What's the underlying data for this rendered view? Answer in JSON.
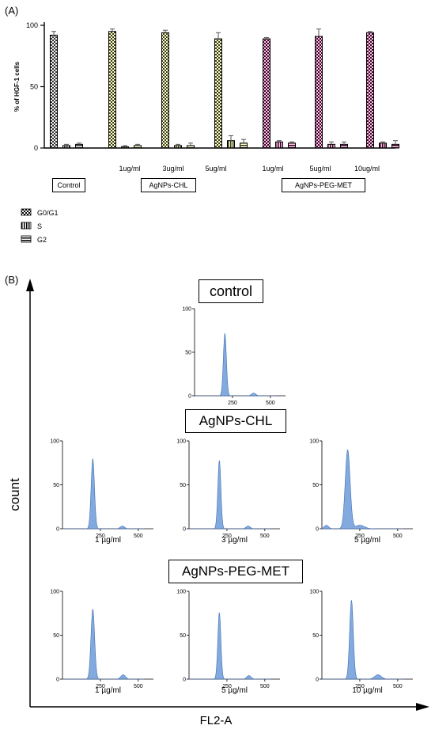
{
  "panel_a_label": "(A)",
  "panel_b_label": "(B)",
  "chart_data": [
    {
      "type": "bar",
      "ylabel": "% of HGF-1 cells",
      "ylim": [
        0,
        100
      ],
      "yticks": [
        0,
        50,
        100
      ],
      "groups": [
        {
          "label": "Control",
          "categories": [
            ""
          ]
        },
        {
          "label": "AgNPs-CHL",
          "categories": [
            "1ug/ml",
            "3ug/ml",
            "5ug/ml"
          ]
        },
        {
          "label": "AgNPs-PEG-MET",
          "categories": [
            "1ug/ml",
            "5ug/ml",
            "10ug/ml"
          ]
        }
      ],
      "legend_position": "bottom-left",
      "series": [
        {
          "name": "G0/G1",
          "values": [
            92,
            95,
            94,
            89,
            89,
            91,
            94
          ],
          "errors": [
            3,
            2,
            2,
            5,
            1,
            6,
            1
          ]
        },
        {
          "name": "S",
          "values": [
            2,
            1,
            2,
            6,
            5,
            3,
            4
          ],
          "errors": [
            1,
            1,
            1,
            4,
            1,
            2,
            1
          ]
        },
        {
          "name": "G2",
          "values": [
            3,
            2,
            2,
            4,
            4,
            3,
            3
          ],
          "errors": [
            1,
            1,
            2,
            3,
            1,
            2,
            3
          ]
        }
      ],
      "colors": {
        "Control": "#c9c9c9",
        "AgNPs-CHL": "#f0ef52",
        "AgNPs-PEG-MET": "#f0149a"
      }
    },
    {
      "type": "area",
      "xlabel": "FL2-A",
      "ylabel": "count",
      "color": "#6c9bd8",
      "histograms": [
        {
          "title": "control",
          "caption": "",
          "xticks": [
            250,
            500
          ],
          "yticks": [
            0,
            50,
            100
          ],
          "xlim": [
            0,
            600
          ],
          "ylim": [
            0,
            100
          ],
          "peaks": [
            {
              "center": 200,
              "width": 10,
              "height": 72
            },
            {
              "center": 390,
              "width": 14,
              "height": 3
            }
          ]
        },
        {
          "title": "AgNPs-CHL",
          "caption": "1 µg/ml",
          "xticks": [
            250,
            500
          ],
          "yticks": [
            0,
            50,
            100
          ],
          "xlim": [
            0,
            600
          ],
          "ylim": [
            0,
            100
          ],
          "peaks": [
            {
              "center": 200,
              "width": 11,
              "height": 80
            },
            {
              "center": 395,
              "width": 14,
              "height": 3
            }
          ]
        },
        {
          "title": "",
          "caption": "3 µg/ml",
          "xticks": [
            250,
            500
          ],
          "yticks": [
            0,
            50,
            100
          ],
          "xlim": [
            0,
            600
          ],
          "ylim": [
            0,
            100
          ],
          "peaks": [
            {
              "center": 200,
              "width": 10,
              "height": 78
            },
            {
              "center": 390,
              "width": 14,
              "height": 3
            }
          ]
        },
        {
          "title": "",
          "caption": "5 µg/ml",
          "xticks": [
            250,
            500
          ],
          "yticks": [
            0,
            50,
            100
          ],
          "xlim": [
            0,
            600
          ],
          "ylim": [
            0,
            100
          ],
          "peaks": [
            {
              "center": 170,
              "width": 16,
              "height": 90
            },
            {
              "center": 250,
              "width": 30,
              "height": 4
            },
            {
              "center": 30,
              "width": 14,
              "height": 4
            }
          ]
        },
        {
          "title": "AgNPs-PEG-MET",
          "caption": "1 µg/ml",
          "xticks": [
            250,
            500
          ],
          "yticks": [
            0,
            50,
            100
          ],
          "xlim": [
            0,
            600
          ],
          "ylim": [
            0,
            100
          ],
          "peaks": [
            {
              "center": 200,
              "width": 12,
              "height": 80
            },
            {
              "center": 400,
              "width": 15,
              "height": 5
            }
          ]
        },
        {
          "title": "",
          "caption": "5 µg/ml",
          "xticks": [
            250,
            500
          ],
          "yticks": [
            0,
            50,
            100
          ],
          "xlim": [
            0,
            600
          ],
          "ylim": [
            0,
            100
          ],
          "peaks": [
            {
              "center": 200,
              "width": 10,
              "height": 76
            },
            {
              "center": 395,
              "width": 14,
              "height": 4
            }
          ]
        },
        {
          "title": "",
          "caption": "10 µg/ml",
          "xticks": [
            250,
            500
          ],
          "yticks": [
            0,
            50,
            100
          ],
          "xlim": [
            0,
            600
          ],
          "ylim": [
            0,
            100
          ],
          "peaks": [
            {
              "center": 195,
              "width": 12,
              "height": 90
            },
            {
              "center": 370,
              "width": 22,
              "height": 5
            }
          ]
        }
      ]
    }
  ]
}
